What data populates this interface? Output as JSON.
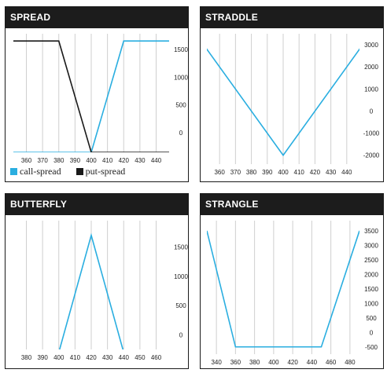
{
  "colors": {
    "call": "#2aaee0",
    "put": "#1a1a1a",
    "grid": "#cfcfcf",
    "header": "#1c1c1c"
  },
  "chart_data": [
    {
      "type": "line",
      "title": "SPREAD",
      "xlim": [
        352,
        448
      ],
      "ylim": [
        -350,
        1780
      ],
      "xticks": [
        360,
        370,
        380,
        390,
        400,
        410,
        420,
        430,
        440
      ],
      "yticks": [
        0,
        500,
        1000,
        1500
      ],
      "series": [
        {
          "name": "call-spread",
          "color": "#2aaee0",
          "x": [
            350,
            400,
            420,
            450
          ],
          "y": [
            -350,
            -350,
            1650,
            1650
          ]
        },
        {
          "name": "put-spread",
          "color": "#1a1a1a",
          "x": [
            350,
            380,
            400,
            450
          ],
          "y": [
            1650,
            1650,
            -350,
            -350
          ]
        }
      ],
      "legend": [
        {
          "label": "call-spread",
          "color": "#2aaee0"
        },
        {
          "label": "put-spread",
          "color": "#1a1a1a"
        }
      ]
    },
    {
      "type": "line",
      "title": "STRADDLE",
      "xlim": [
        352,
        448
      ],
      "ylim": [
        -2400,
        3500
      ],
      "xticks": [
        360,
        370,
        380,
        390,
        400,
        410,
        420,
        430,
        440
      ],
      "yticks": [
        -2000,
        -1000,
        0,
        1000,
        2000,
        3000
      ],
      "series": [
        {
          "color": "#2aaee0",
          "x": [
            350,
            400,
            450
          ],
          "y": [
            3000,
            -2000,
            3000
          ]
        }
      ]
    },
    {
      "type": "line",
      "title": "BUTTERFLY",
      "xlim": [
        372,
        468
      ],
      "ylim": [
        -250,
        1950
      ],
      "xticks": [
        380,
        390,
        400,
        410,
        420,
        430,
        440,
        450,
        460
      ],
      "yticks": [
        0,
        500,
        1000,
        1500
      ],
      "series": [
        {
          "color": "#2aaee0",
          "x": [
            370,
            400,
            420,
            440,
            470
          ],
          "y": [
            -300,
            -300,
            1700,
            -300,
            -300
          ]
        }
      ]
    },
    {
      "type": "line",
      "title": "STRANGLE",
      "xlim": [
        330,
        490
      ],
      "ylim": [
        -750,
        3850
      ],
      "xticks": [
        340,
        360,
        380,
        400,
        420,
        440,
        460,
        480
      ],
      "yticks": [
        -500,
        0,
        500,
        1000,
        1500,
        2000,
        2500,
        3000,
        3500
      ],
      "series": [
        {
          "color": "#2aaee0",
          "x": [
            330,
            360,
            450,
            490
          ],
          "y": [
            3500,
            -500,
            -500,
            3500
          ]
        }
      ]
    }
  ]
}
